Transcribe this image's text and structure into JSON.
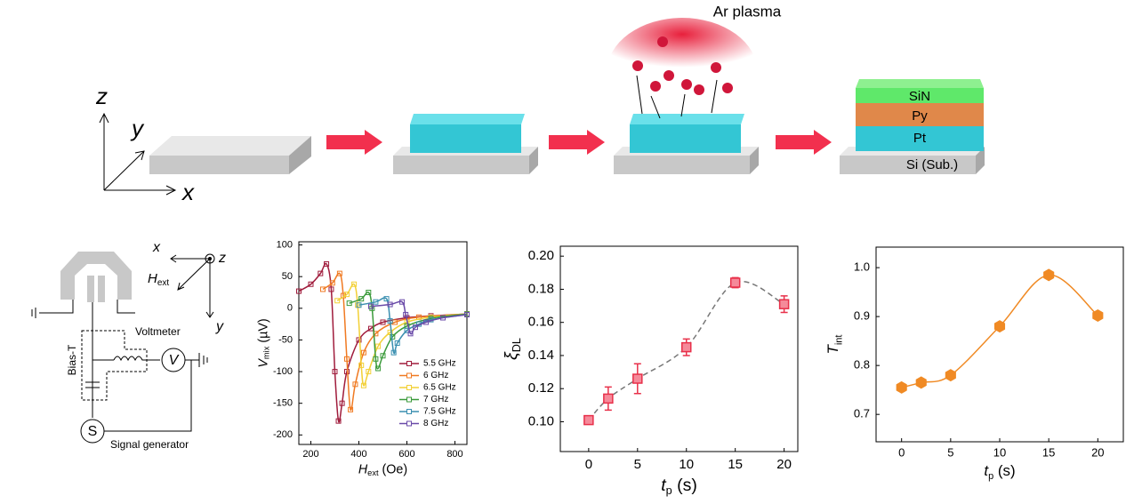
{
  "diagram": {
    "axes": {
      "z": "z",
      "y": "y",
      "x": "x"
    },
    "plasma": "Ar plasma",
    "layers": [
      "SiN",
      "Py",
      "Pt",
      "Si (Sub.)"
    ]
  },
  "circuit": {
    "bias": "Bias-T",
    "voltmeter": "Voltmeter",
    "v": "V",
    "s": "S",
    "generator": "Signal generator",
    "axes": {
      "x": "x",
      "z": "z",
      "y": "y"
    },
    "field": [
      "H",
      "ext"
    ]
  },
  "chart_data": [
    {
      "type": "line",
      "xlabel": [
        "H",
        "ext",
        " (Oe)"
      ],
      "ylabel": [
        "V",
        "mix",
        " (µV)"
      ],
      "xlim": [
        150,
        850
      ],
      "ylim": [
        -215,
        105
      ],
      "xticks": [
        200,
        400,
        600,
        800
      ],
      "yticks": [
        100,
        50,
        0,
        -50,
        -100,
        -150,
        -200
      ],
      "series": [
        {
          "name": "5.5 GHz",
          "color": "#a01c3c",
          "x": [
            150,
            200,
            240,
            265,
            285,
            300,
            315,
            330,
            350,
            400,
            450,
            500,
            600,
            700,
            850
          ],
          "values": [
            27,
            38,
            55,
            70,
            30,
            -100,
            -178,
            -150,
            -100,
            -50,
            -32,
            -22,
            -15,
            -12,
            -9
          ]
        },
        {
          "name": "6 GHz",
          "color": "#f07a22",
          "x": [
            250,
            290,
            320,
            335,
            350,
            365,
            385,
            420,
            470,
            550,
            650,
            850
          ],
          "values": [
            30,
            40,
            55,
            20,
            -80,
            -160,
            -120,
            -70,
            -40,
            -22,
            -14,
            -9
          ]
        },
        {
          "name": "6.5 GHz",
          "color": "#f2d036",
          "x": [
            310,
            350,
            380,
            395,
            410,
            420,
            440,
            480,
            530,
            600,
            700,
            850
          ],
          "values": [
            12,
            22,
            38,
            5,
            -90,
            -122,
            -100,
            -60,
            -38,
            -22,
            -14,
            -9
          ]
        },
        {
          "name": "7 GHz",
          "color": "#3a9a3a",
          "x": [
            360,
            410,
            440,
            455,
            470,
            480,
            500,
            540,
            600,
            700,
            850
          ],
          "values": [
            8,
            15,
            25,
            0,
            -80,
            -95,
            -75,
            -45,
            -28,
            -16,
            -9
          ]
        },
        {
          "name": "7.5 GHz",
          "color": "#3a8fb0",
          "x": [
            400,
            470,
            515,
            530,
            545,
            560,
            600,
            650,
            700,
            850
          ],
          "values": [
            5,
            10,
            15,
            -20,
            -70,
            -55,
            -35,
            -25,
            -18,
            -10
          ]
        },
        {
          "name": "8 GHz",
          "color": "#6a4aa8",
          "x": [
            450,
            530,
            580,
            595,
            615,
            635,
            680,
            750,
            850
          ],
          "values": [
            3,
            6,
            10,
            -10,
            -40,
            -30,
            -22,
            -15,
            -10
          ]
        }
      ]
    },
    {
      "type": "errorbar",
      "xlabel": [
        "t",
        "p",
        " (s)"
      ],
      "ylabel": [
        "ξ",
        "DL"
      ],
      "x": [
        0,
        2,
        5,
        10,
        15,
        20
      ],
      "values": [
        0.101,
        0.114,
        0.126,
        0.145,
        0.184,
        0.171
      ],
      "errors": [
        0.002,
        0.007,
        0.009,
        0.005,
        0.003,
        0.005
      ],
      "color": "#e8304a",
      "xlim": [
        -2.9,
        21.4
      ],
      "ylim": [
        0.082,
        0.206
      ],
      "xticks": [
        0,
        5,
        10,
        15,
        20
      ],
      "yticks": [
        {
          "value": 0.1,
          "label": "0.10"
        },
        0.12,
        0.14,
        0.16,
        0.18,
        {
          "value": 0.2,
          "label": "0.20"
        }
      ]
    },
    {
      "type": "scatter",
      "xlabel": [
        "t",
        "p",
        " (s)"
      ],
      "ylabel": [
        "T",
        "int"
      ],
      "x": [
        0,
        2,
        5,
        10,
        15,
        20
      ],
      "values": [
        0.755,
        0.765,
        0.78,
        0.88,
        0.985,
        0.902
      ],
      "color": "#f08a24",
      "xlim": [
        -2.6,
        22.6
      ],
      "ylim": [
        0.644,
        1.042
      ],
      "xticks": [
        0,
        5,
        10,
        15,
        20
      ],
      "yticks": [
        0.7,
        0.8,
        0.9,
        {
          "value": 1,
          "label": "1.0"
        }
      ]
    }
  ]
}
